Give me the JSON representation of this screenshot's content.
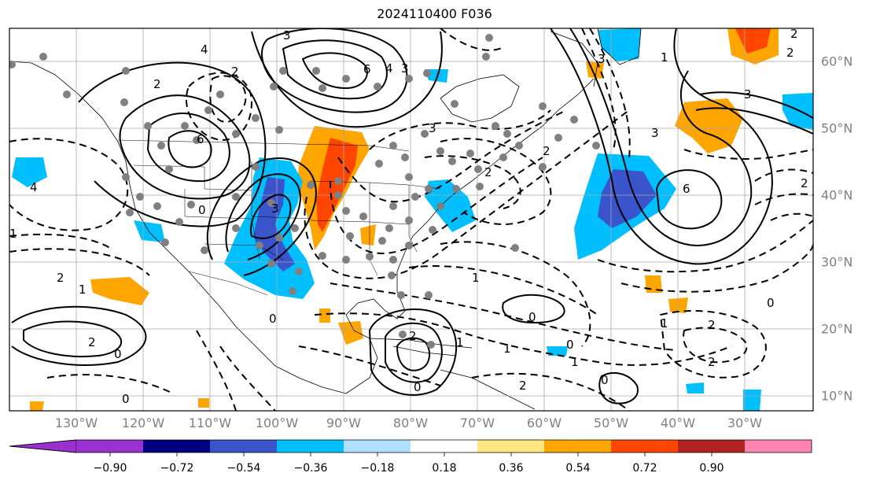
{
  "title": "2024110400 F036",
  "lon_labels": [
    "130°W",
    "120°W",
    "110°W",
    "100°W",
    "90°W",
    "80°W",
    "70°W",
    "60°W",
    "50°W",
    "40°W",
    "30°W"
  ],
  "lat_labels": [
    "60°N",
    "50°N",
    "40°N",
    "30°N",
    "20°N",
    "10°N"
  ],
  "colorbar": {
    "ticks": [
      "−0.90",
      "−0.72",
      "−0.54",
      "−0.36",
      "−0.18",
      "0.18",
      "0.36",
      "0.54",
      "0.72",
      "0.90"
    ],
    "colors": [
      "#9b30d0",
      "#000080",
      "#3a55cc",
      "#00bfff",
      "#b0e0ff",
      "#ffffff",
      "#ffe680",
      "#ffa500",
      "#ff4500",
      "#b22222",
      "#ff85b0"
    ]
  },
  "contour_labels": [
    "4",
    "2",
    "1",
    "0",
    "0",
    "0",
    "2",
    "1",
    "0",
    "2",
    "2",
    "1",
    "0",
    "3",
    "3",
    "6",
    "4",
    "3",
    "2",
    "2",
    "1",
    "0",
    "6",
    "3",
    "6",
    "4",
    "3",
    "2",
    "2",
    "1",
    "0",
    "0",
    "1",
    "2",
    "2",
    "1",
    "0",
    "3",
    "3",
    "2",
    "2",
    "2",
    "1"
  ],
  "colors": {
    "warm": "#ffa500",
    "hot": "#ff4500",
    "cool": "#00bfff",
    "cold": "#3a55cc",
    "station": "#808080"
  }
}
